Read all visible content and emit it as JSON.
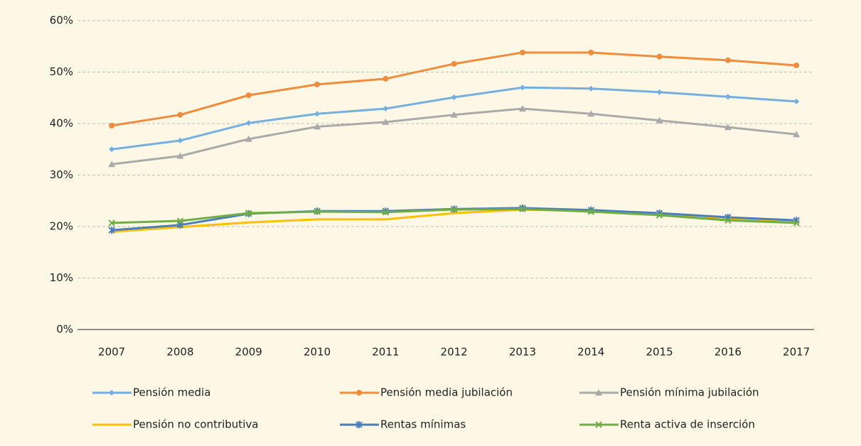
{
  "chart_data": {
    "type": "line",
    "categories": [
      "2007",
      "2008",
      "2009",
      "2010",
      "2011",
      "2012",
      "2013",
      "2014",
      "2015",
      "2016",
      "2017"
    ],
    "series": [
      {
        "name": "Pensión media",
        "color": "#75aee0",
        "marker": "diamond",
        "values": [
          35.0,
          36.7,
          40.1,
          41.9,
          42.9,
          45.1,
          47.0,
          46.8,
          46.1,
          45.2,
          44.3
        ]
      },
      {
        "name": "Pensión media jubilación",
        "color": "#f08c3c",
        "marker": "circle",
        "values": [
          39.6,
          41.7,
          45.5,
          47.6,
          48.7,
          51.6,
          53.8,
          53.8,
          53.0,
          52.3,
          51.3
        ]
      },
      {
        "name": "Pensión mínima jubilación",
        "color": "#aaaaaa",
        "marker": "triangle",
        "values": [
          32.1,
          33.7,
          37.0,
          39.4,
          40.3,
          41.7,
          42.9,
          41.9,
          40.6,
          39.3,
          37.9
        ]
      },
      {
        "name": "Pensión no contributiva",
        "color": "#ffc000",
        "marker": "none",
        "values": [
          19.0,
          19.9,
          20.8,
          21.4,
          21.4,
          22.6,
          23.3,
          23.0,
          22.5,
          21.5,
          20.8
        ]
      },
      {
        "name": "Rentas mínimas",
        "color": "#4a7ebb",
        "marker": "star",
        "values": [
          19.3,
          20.3,
          22.5,
          23.0,
          23.0,
          23.4,
          23.6,
          23.2,
          22.6,
          21.8,
          21.2
        ]
      },
      {
        "name": "Renta activa de inserción",
        "color": "#70ad47",
        "marker": "x",
        "values": [
          20.7,
          21.1,
          22.6,
          22.9,
          22.8,
          23.3,
          23.4,
          22.9,
          22.2,
          21.2,
          20.7
        ]
      }
    ],
    "ylim": [
      0,
      60
    ],
    "yticks": [
      {
        "value": 0,
        "label": "0%"
      },
      {
        "value": 10,
        "label": "10%"
      },
      {
        "value": 20,
        "label": "20%"
      },
      {
        "value": 30,
        "label": "30%"
      },
      {
        "value": 40,
        "label": "40%"
      },
      {
        "value": 50,
        "label": "50%"
      },
      {
        "value": 60,
        "label": "60%"
      }
    ],
    "grid": true
  }
}
